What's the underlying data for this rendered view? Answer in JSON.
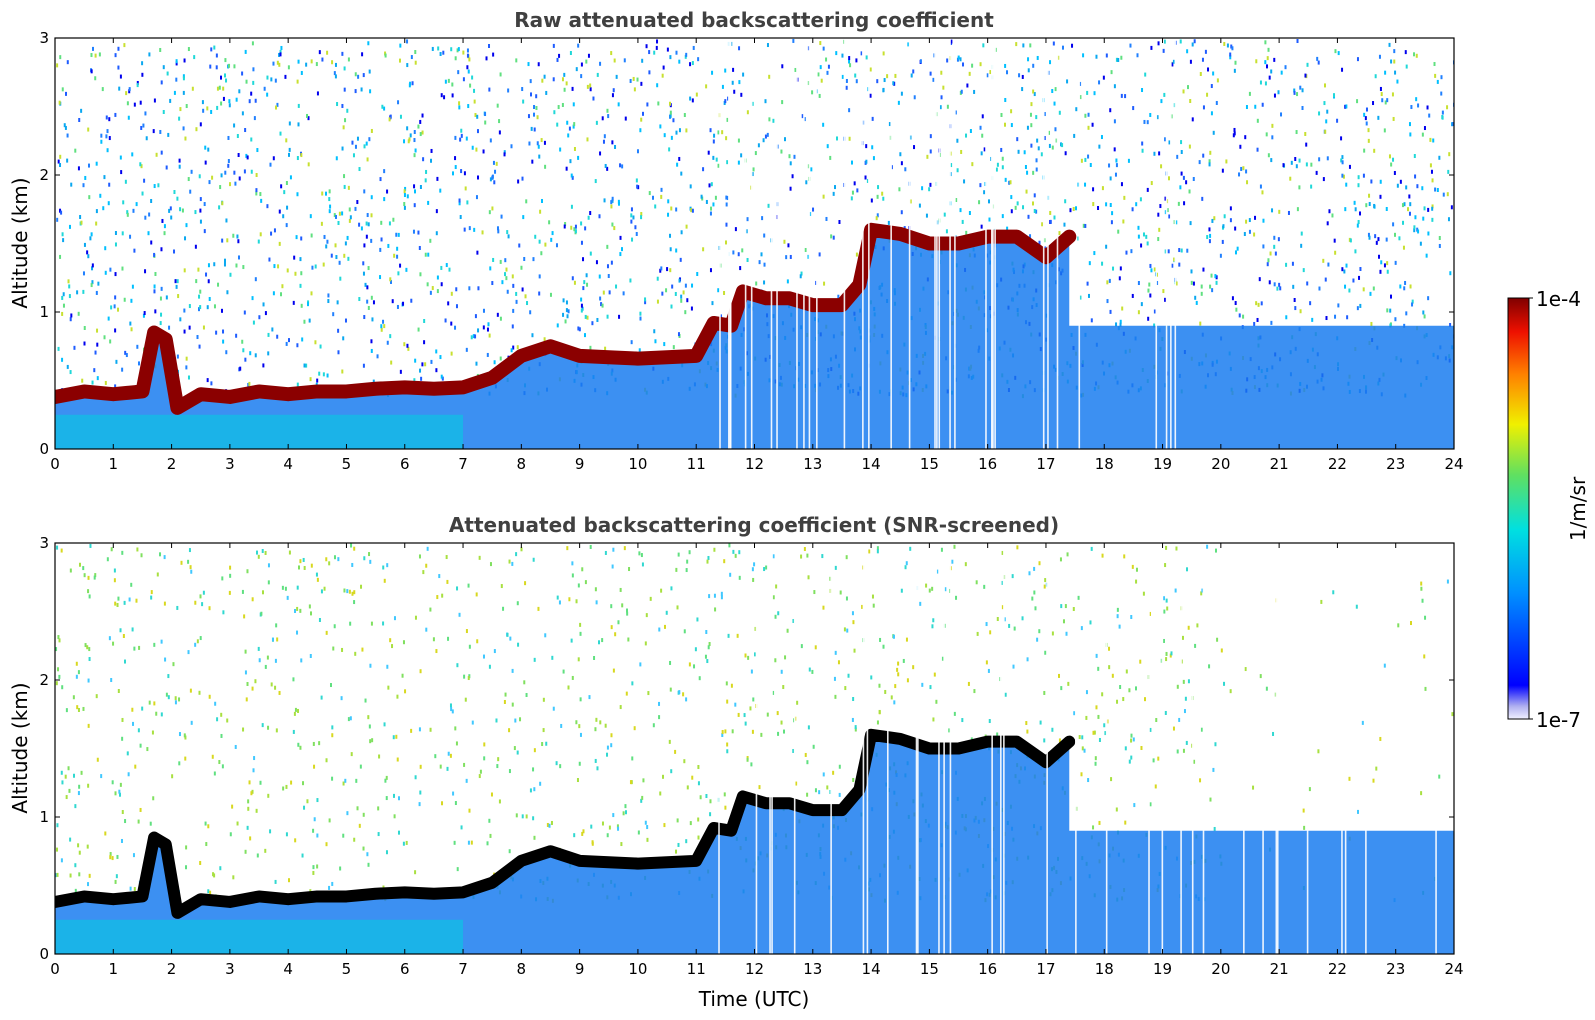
{
  "chart_data": [
    {
      "type": "heatmap",
      "title": "Raw attenuated backscattering coefficient",
      "xlabel": "",
      "ylabel": "Altitude (km)",
      "xlim": [
        0,
        24
      ],
      "ylim": [
        0,
        3
      ],
      "xticks": [
        "0",
        "1",
        "2",
        "3",
        "4",
        "5",
        "6",
        "7",
        "8",
        "9",
        "10",
        "11",
        "12",
        "13",
        "14",
        "15",
        "16",
        "17",
        "18",
        "19",
        "20",
        "21",
        "22",
        "23",
        "24"
      ],
      "yticks": [
        "0",
        "1",
        "2",
        "3"
      ],
      "colorscale": "jet",
      "screened": false,
      "layer_top_km": [
        [
          0,
          0.38
        ],
        [
          0.5,
          0.42
        ],
        [
          1.0,
          0.4
        ],
        [
          1.5,
          0.42
        ],
        [
          1.7,
          0.85
        ],
        [
          1.9,
          0.8
        ],
        [
          2.1,
          0.3
        ],
        [
          2.5,
          0.4
        ],
        [
          3.0,
          0.38
        ],
        [
          3.5,
          0.42
        ],
        [
          4.0,
          0.4
        ],
        [
          4.5,
          0.42
        ],
        [
          5.0,
          0.42
        ],
        [
          5.5,
          0.44
        ],
        [
          6.0,
          0.45
        ],
        [
          6.5,
          0.44
        ],
        [
          7.0,
          0.45
        ],
        [
          7.5,
          0.52
        ],
        [
          8.0,
          0.68
        ],
        [
          8.5,
          0.75
        ],
        [
          9.0,
          0.68
        ],
        [
          9.5,
          0.67
        ],
        [
          10.0,
          0.66
        ],
        [
          10.5,
          0.67
        ],
        [
          11.0,
          0.68
        ],
        [
          11.3,
          0.92
        ],
        [
          11.6,
          0.9
        ],
        [
          11.8,
          1.15
        ],
        [
          12.2,
          1.1
        ],
        [
          12.6,
          1.1
        ],
        [
          13.0,
          1.05
        ],
        [
          13.5,
          1.05
        ],
        [
          13.8,
          1.2
        ],
        [
          14.0,
          1.6
        ],
        [
          14.5,
          1.57
        ],
        [
          15.0,
          1.5
        ],
        [
          15.5,
          1.5
        ],
        [
          16.0,
          1.55
        ],
        [
          16.5,
          1.55
        ],
        [
          17.0,
          1.4
        ],
        [
          17.4,
          1.55
        ]
      ]
    },
    {
      "type": "heatmap",
      "title": "Attenuated backscattering coefficient (SNR-screened)",
      "xlabel": "Time (UTC)",
      "ylabel": "Altitude (km)",
      "xlim": [
        0,
        24
      ],
      "ylim": [
        0,
        3
      ],
      "xticks": [
        "0",
        "1",
        "2",
        "3",
        "4",
        "5",
        "6",
        "7",
        "8",
        "9",
        "10",
        "11",
        "12",
        "13",
        "14",
        "15",
        "16",
        "17",
        "18",
        "19",
        "20",
        "21",
        "22",
        "23",
        "24"
      ],
      "yticks": [
        "0",
        "1",
        "2",
        "3"
      ],
      "colorscale": "jet",
      "screened": true,
      "layer_top_km": [
        [
          0,
          0.38
        ],
        [
          0.5,
          0.42
        ],
        [
          1.0,
          0.4
        ],
        [
          1.5,
          0.42
        ],
        [
          1.7,
          0.85
        ],
        [
          1.9,
          0.8
        ],
        [
          2.1,
          0.3
        ],
        [
          2.5,
          0.4
        ],
        [
          3.0,
          0.38
        ],
        [
          3.5,
          0.42
        ],
        [
          4.0,
          0.4
        ],
        [
          4.5,
          0.42
        ],
        [
          5.0,
          0.42
        ],
        [
          5.5,
          0.44
        ],
        [
          6.0,
          0.45
        ],
        [
          6.5,
          0.44
        ],
        [
          7.0,
          0.45
        ],
        [
          7.5,
          0.52
        ],
        [
          8.0,
          0.68
        ],
        [
          8.5,
          0.75
        ],
        [
          9.0,
          0.68
        ],
        [
          9.5,
          0.67
        ],
        [
          10.0,
          0.66
        ],
        [
          10.5,
          0.67
        ],
        [
          11.0,
          0.68
        ],
        [
          11.3,
          0.92
        ],
        [
          11.6,
          0.9
        ],
        [
          11.8,
          1.15
        ],
        [
          12.2,
          1.1
        ],
        [
          12.6,
          1.1
        ],
        [
          13.0,
          1.05
        ],
        [
          13.5,
          1.05
        ],
        [
          13.8,
          1.2
        ],
        [
          14.0,
          1.6
        ],
        [
          14.5,
          1.57
        ],
        [
          15.0,
          1.5
        ],
        [
          15.5,
          1.5
        ],
        [
          16.0,
          1.55
        ],
        [
          16.5,
          1.55
        ],
        [
          17.0,
          1.4
        ],
        [
          17.4,
          1.55
        ]
      ]
    }
  ],
  "colorbar": {
    "label": "1/m/sr",
    "max_label": "1e-4",
    "min_label": "1e-7",
    "range": [
      1e-07,
      0.0001
    ],
    "scale": "log"
  }
}
